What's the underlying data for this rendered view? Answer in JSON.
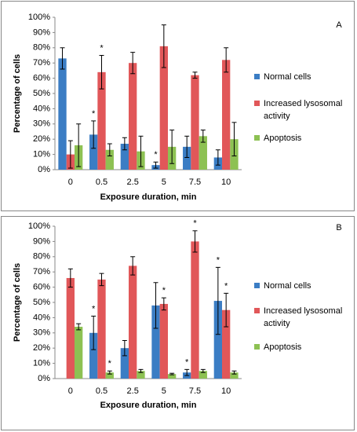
{
  "chart_data": [
    {
      "type": "bar",
      "label": "A",
      "x_label": "Exposure duration, min",
      "y_label": "Percentage of cells",
      "categories": [
        "0",
        "0.5",
        "2.5",
        "5",
        "7.5",
        "10"
      ],
      "series": [
        {
          "name": "Normal cells",
          "color": "#3b7dc4",
          "values": [
            73,
            23,
            17,
            3,
            15,
            8
          ],
          "errors": [
            7,
            9,
            4,
            2,
            7,
            5
          ],
          "annotations": [
            null,
            "*",
            null,
            "*",
            null,
            null
          ]
        },
        {
          "name": "Increased lysosomal activity",
          "color": "#e15759",
          "values": [
            10,
            64,
            70,
            81,
            62,
            72
          ],
          "errors": [
            9,
            11,
            7,
            14,
            2,
            8
          ],
          "annotations": [
            null,
            "*",
            null,
            null,
            null,
            null
          ]
        },
        {
          "name": "Apoptosis",
          "color": "#8dc153",
          "values": [
            16,
            13,
            12,
            15,
            22,
            20
          ],
          "errors": [
            14,
            4,
            10,
            11,
            4,
            11
          ],
          "annotations": [
            null,
            null,
            null,
            null,
            null,
            null
          ]
        }
      ],
      "ylim": [
        0,
        100
      ],
      "yticks": [
        {
          "value": 0,
          "label": "0%"
        },
        {
          "value": 10,
          "label": "10%"
        },
        {
          "value": 20,
          "label": "20%"
        },
        {
          "value": 30,
          "label": "30%"
        },
        {
          "value": 40,
          "label": "40%"
        },
        {
          "value": 50,
          "label": "50%"
        },
        {
          "value": 60,
          "label": "60%"
        },
        {
          "value": 70,
          "label": "70%"
        },
        {
          "value": 80,
          "label": "80%"
        },
        {
          "value": 90,
          "label": "90%"
        },
        {
          "value": 100,
          "label": "100%"
        }
      ],
      "grid": false,
      "legend": "right"
    },
    {
      "type": "bar",
      "label": "B",
      "x_label": "Exposure duration, min",
      "y_label": "Percentage of cells",
      "categories": [
        "0",
        "0.5",
        "2.5",
        "5",
        "7.5",
        "10"
      ],
      "series": [
        {
          "name": "Normal cells",
          "color": "#3b7dc4",
          "values": [
            null,
            30,
            20,
            48,
            4,
            51
          ],
          "errors": [
            null,
            11,
            5,
            15,
            2,
            22
          ],
          "annotations": [
            null,
            "*",
            null,
            null,
            "*",
            "*"
          ]
        },
        {
          "name": "Increased lysosomal activity",
          "color": "#e15759",
          "values": [
            66,
            65,
            74,
            49,
            90,
            45
          ],
          "errors": [
            6,
            4,
            6,
            4,
            7,
            11
          ],
          "annotations": [
            null,
            null,
            null,
            "*",
            "*",
            "*"
          ]
        },
        {
          "name": "Apoptosis",
          "color": "#8dc153",
          "values": [
            34,
            4,
            5,
            3,
            5,
            4
          ],
          "errors": [
            2,
            1,
            1,
            0.5,
            1,
            1
          ],
          "annotations": [
            null,
            "*",
            null,
            null,
            null,
            null
          ]
        }
      ],
      "ylim": [
        0,
        100
      ],
      "yticks": [
        {
          "value": 0,
          "label": "0%"
        },
        {
          "value": 10,
          "label": "10%"
        },
        {
          "value": 20,
          "label": "20%"
        },
        {
          "value": 30,
          "label": "30%"
        },
        {
          "value": 40,
          "label": "40%"
        },
        {
          "value": 50,
          "label": "50%"
        },
        {
          "value": 60,
          "label": "60%"
        },
        {
          "value": 70,
          "label": "70%"
        },
        {
          "value": 80,
          "label": "80%"
        },
        {
          "value": 90,
          "label": "90%"
        },
        {
          "value": 100,
          "label": "100%"
        }
      ],
      "grid": false,
      "legend": "right"
    }
  ]
}
